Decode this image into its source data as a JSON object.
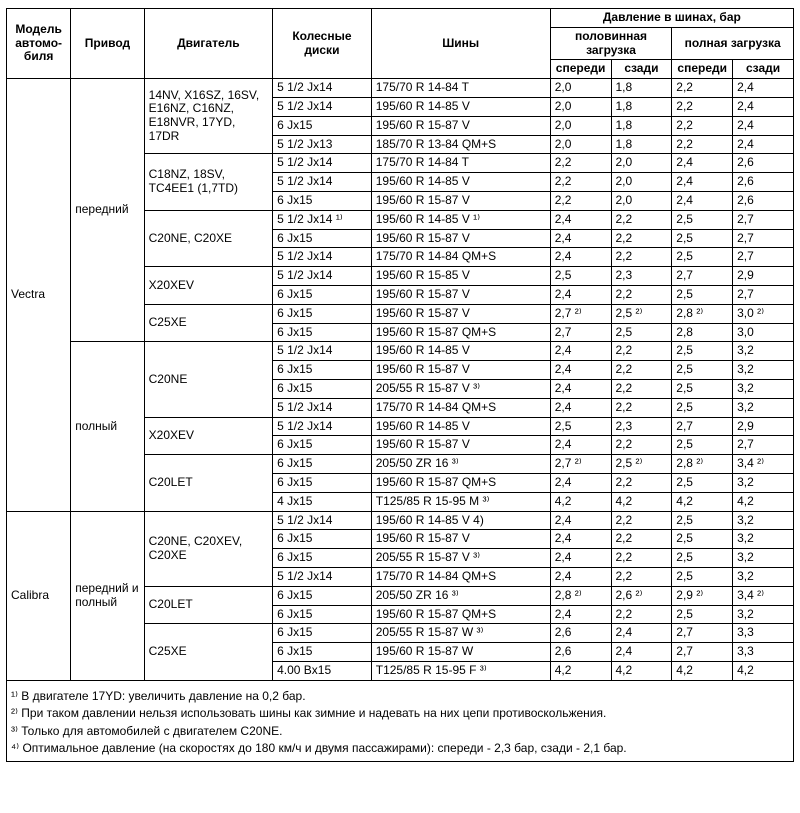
{
  "cols": {
    "model": "Модель автомо-биля",
    "drive": "Привод",
    "engine": "Двигатель",
    "wheels": "Колесные диски",
    "tires": "Шины",
    "pressure": "Давление в шинах, бар",
    "half": "половинная загрузка",
    "full": "полная загрузка",
    "front": "спереди",
    "rear": "сзади"
  },
  "widths": {
    "model": 56,
    "drive": 64,
    "engine": 112,
    "wheels": 86,
    "tires": 156,
    "p": 53
  },
  "groups": [
    {
      "model": "Vectra",
      "drives": [
        {
          "drive": "передний",
          "engines": [
            {
              "engine": "14NV, X16SZ, 16SV, E16NZ, C16NZ, E18NVR, 17YD, 17DR",
              "rows": [
                {
                  "w": "5 1/2 Jx14",
                  "t": "175/70 R 14-84 T",
                  "p": [
                    "2,0",
                    "1,8",
                    "2,2",
                    "2,4"
                  ]
                },
                {
                  "w": "5 1/2 Jx14",
                  "t": "195/60 R 14-85 V",
                  "p": [
                    "2,0",
                    "1,8",
                    "2,2",
                    "2,4"
                  ]
                },
                {
                  "w": "6 Jx15",
                  "t": "195/60 R 15-87 V",
                  "p": [
                    "2,0",
                    "1,8",
                    "2,2",
                    "2,4"
                  ]
                },
                {
                  "w": "5 1/2 Jx13",
                  "t": "185/70 R 13-84 QM+S",
                  "p": [
                    "2,0",
                    "1,8",
                    "2,2",
                    "2,4"
                  ]
                }
              ]
            },
            {
              "engine": "C18NZ, 18SV, TC4EE1 (1,7TD)",
              "rows": [
                {
                  "w": "5 1/2 Jx14",
                  "t": "175/70 R 14-84 T",
                  "p": [
                    "2,2",
                    "2,0",
                    "2,4",
                    "2,6"
                  ]
                },
                {
                  "w": "5 1/2 Jx14",
                  "t": "195/60 R 14-85 V",
                  "p": [
                    "2,2",
                    "2,0",
                    "2,4",
                    "2,6"
                  ]
                },
                {
                  "w": "6 Jx15",
                  "t": "195/60 R 15-87 V",
                  "p": [
                    "2,2",
                    "2,0",
                    "2,4",
                    "2,6"
                  ]
                }
              ]
            },
            {
              "engine": "C20NE, C20XE",
              "rows": [
                {
                  "w": "5 1/2 Jx14 ¹⁾",
                  "t": "195/60 R 14-85 V ¹⁾",
                  "p": [
                    "2,4",
                    "2,2",
                    "2,5",
                    "2,7"
                  ]
                },
                {
                  "w": "6 Jx15",
                  "t": "195/60 R 15-87 V",
                  "p": [
                    "2,4",
                    "2,2",
                    "2,5",
                    "2,7"
                  ]
                },
                {
                  "w": "5 1/2 Jx14",
                  "t": "175/70 R 14-84 QM+S",
                  "p": [
                    "2,4",
                    "2,2",
                    "2,5",
                    "2,7"
                  ]
                }
              ]
            },
            {
              "engine": "X20XEV",
              "rows": [
                {
                  "w": "5 1/2 Jx14",
                  "t": "195/60 R 15-85 V",
                  "p": [
                    "2,5",
                    "2,3",
                    "2,7",
                    "2,9"
                  ]
                },
                {
                  "w": "6 Jx15",
                  "t": "195/60 R 15-87 V",
                  "p": [
                    "2,4",
                    "2,2",
                    "2,5",
                    "2,7"
                  ]
                }
              ]
            },
            {
              "engine": "C25XE",
              "rows": [
                {
                  "w": "6 Jx15",
                  "t": "195/60 R 15-87 V",
                  "p": [
                    "2,7 ²⁾",
                    "2,5 ²⁾",
                    "2,8 ²⁾",
                    "3,0 ²⁾"
                  ]
                },
                {
                  "w": "6 Jx15",
                  "t": "195/60 R 15-87 QM+S",
                  "p": [
                    "2,7",
                    "2,5",
                    "2,8",
                    "3,0"
                  ]
                }
              ]
            }
          ]
        },
        {
          "drive": "полный",
          "engines": [
            {
              "engine": "C20NE",
              "rows": [
                {
                  "w": "5 1/2 Jx14",
                  "t": "195/60 R 14-85 V",
                  "p": [
                    "2,4",
                    "2,2",
                    "2,5",
                    "3,2"
                  ]
                },
                {
                  "w": "6 Jx15",
                  "t": "195/60 R 15-87 V",
                  "p": [
                    "2,4",
                    "2,2",
                    "2,5",
                    "3,2"
                  ]
                },
                {
                  "w": "6 Jx15",
                  "t": "205/55 R 15-87 V ³⁾",
                  "p": [
                    "2,4",
                    "2,2",
                    "2,5",
                    "3,2"
                  ]
                },
                {
                  "w": "5 1/2 Jx14",
                  "t": "175/70 R 14-84 QM+S",
                  "p": [
                    "2,4",
                    "2,2",
                    "2,5",
                    "3,2"
                  ]
                }
              ]
            },
            {
              "engine": "X20XEV",
              "rows": [
                {
                  "w": "5 1/2 Jx14",
                  "t": "195/60 R 14-85 V",
                  "p": [
                    "2,5",
                    "2,3",
                    "2,7",
                    "2,9"
                  ]
                },
                {
                  "w": "6 Jx15",
                  "t": "195/60 R 15-87 V",
                  "p": [
                    "2,4",
                    "2,2",
                    "2,5",
                    "2,7"
                  ]
                }
              ]
            },
            {
              "engine": "C20LET",
              "rows": [
                {
                  "w": "6 Jx15",
                  "t": "205/50 ZR 16 ³⁾",
                  "p": [
                    "2,7 ²⁾",
                    "2,5 ²⁾",
                    "2,8 ²⁾",
                    "3,4 ²⁾"
                  ]
                },
                {
                  "w": "6 Jx15",
                  "t": "195/60 R 15-87 QM+S",
                  "p": [
                    "2,4",
                    "2,2",
                    "2,5",
                    "3,2"
                  ]
                },
                {
                  "w": "4 Jx15",
                  "t": "T125/85 R 15-95 M ³⁾",
                  "p": [
                    "4,2",
                    "4,2",
                    "4,2",
                    "4,2"
                  ]
                }
              ]
            }
          ]
        }
      ]
    },
    {
      "model": "Calibra",
      "drives": [
        {
          "drive": "передний и полный",
          "engines": [
            {
              "engine": "C20NE, C20XEV, C20XE",
              "rows": [
                {
                  "w": "5 1/2 Jx14",
                  "t": "195/60 R 14-85 V 4)",
                  "p": [
                    "2,4",
                    "2,2",
                    "2,5",
                    "3,2"
                  ]
                },
                {
                  "w": "6 Jx15",
                  "t": "195/60 R 15-87 V",
                  "p": [
                    "2,4",
                    "2,2",
                    "2,5",
                    "3,2"
                  ]
                },
                {
                  "w": "6 Jx15",
                  "t": "205/55 R 15-87 V ³⁾",
                  "p": [
                    "2,4",
                    "2,2",
                    "2,5",
                    "3,2"
                  ]
                },
                {
                  "w": "5 1/2 Jx14",
                  "t": "175/70 R 14-84 QM+S",
                  "p": [
                    "2,4",
                    "2,2",
                    "2,5",
                    "3,2"
                  ]
                }
              ]
            },
            {
              "engine": "C20LET",
              "rows": [
                {
                  "w": "6 Jx15",
                  "t": "205/50 ZR 16 ³⁾",
                  "p": [
                    "2,8 ²⁾",
                    "2,6 ²⁾",
                    "2,9 ²⁾",
                    "3,4 ²⁾"
                  ]
                },
                {
                  "w": "6 Jx15",
                  "t": "195/60 R 15-87 QM+S",
                  "p": [
                    "2,4",
                    "2,2",
                    "2,5",
                    "3,2"
                  ]
                }
              ]
            },
            {
              "engine": "C25XE",
              "rows": [
                {
                  "w": "6 Jx15",
                  "t": "205/55 R 15-87 W ³⁾",
                  "p": [
                    "2,6",
                    "2,4",
                    "2,7",
                    "3,3"
                  ]
                },
                {
                  "w": "6 Jx15",
                  "t": "195/60 R 15-87 W",
                  "p": [
                    "2,6",
                    "2,4",
                    "2,7",
                    "3,3"
                  ]
                },
                {
                  "w": "4.00 Bx15",
                  "t": "T125/85 R 15-95 F ³⁾",
                  "p": [
                    "4,2",
                    "4,2",
                    "4,2",
                    "4,2"
                  ]
                }
              ]
            }
          ]
        }
      ]
    }
  ],
  "notes": [
    "¹⁾ В двигателе 17YD: увеличить давление на 0,2 бар.",
    "²⁾ При таком давлении нельзя использовать шины как зимние и надевать на них цепи противоскольжения.",
    "³⁾ Только для автомобилей с двигателем C20NE.",
    "⁴⁾ Оптимальное давление (на скоростях до 180 км/ч и двумя пассажирами): спереди - 2,3 бар, сзади - 2,1 бар."
  ]
}
